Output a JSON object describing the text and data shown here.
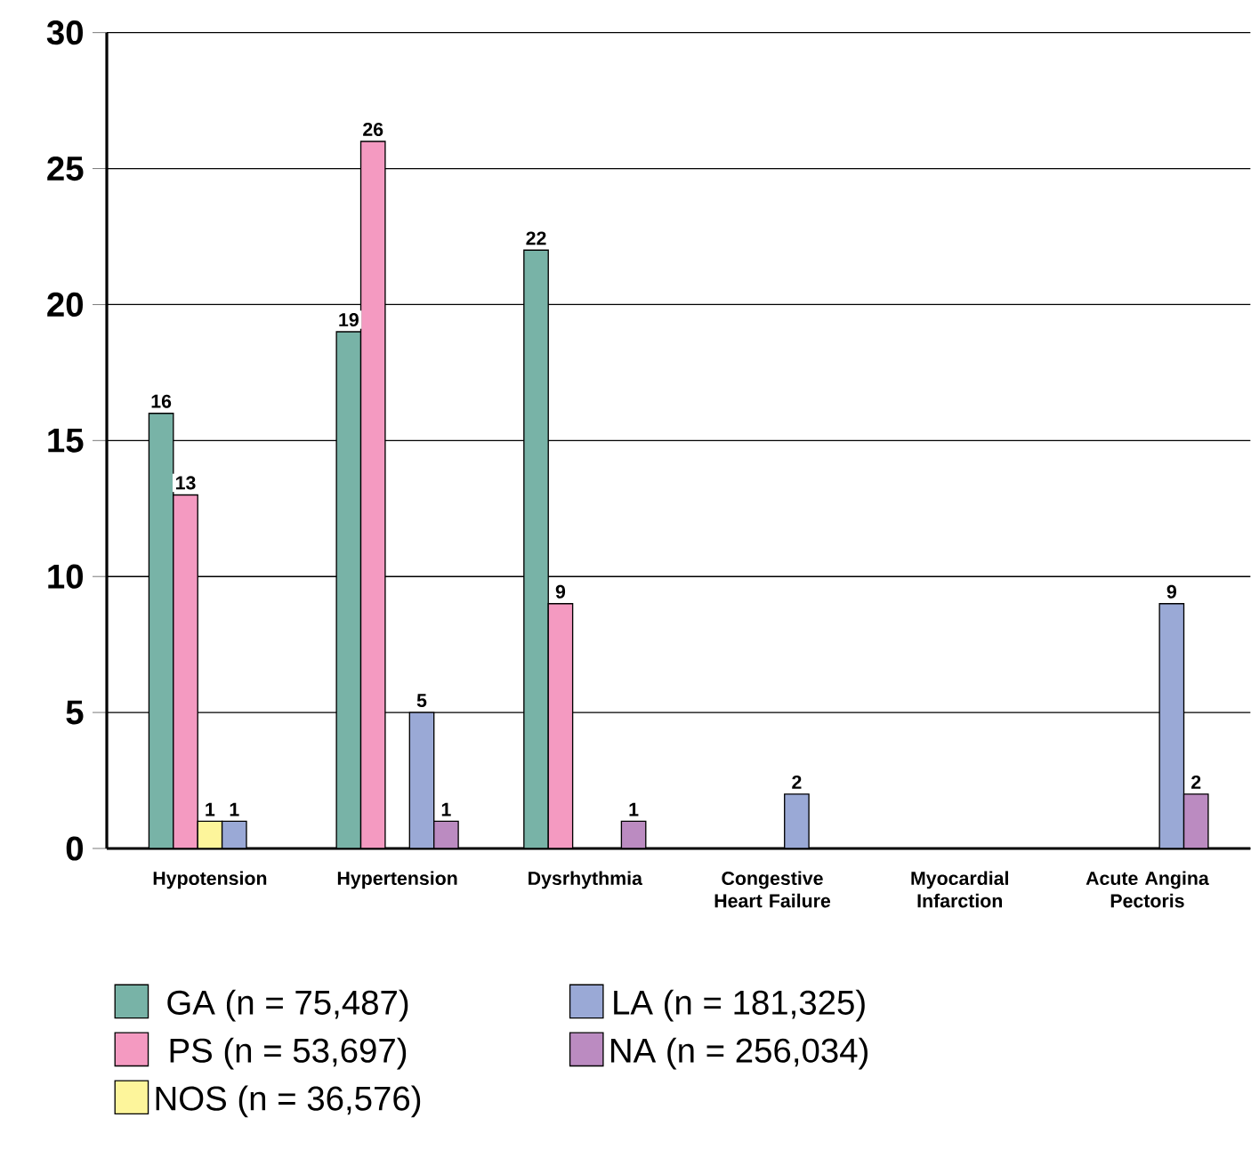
{
  "chart_data": {
    "type": "bar",
    "categories": [
      "Hypotension",
      "Hypertension",
      "Dysrhythmia",
      "Congestive Heart Failure",
      "Myocardial Infarction",
      "Acute Angina Pectoris"
    ],
    "series": [
      {
        "name": "GA (n = 75,487)",
        "color": "#78b3a7",
        "values": [
          16,
          19,
          22,
          null,
          null,
          null
        ]
      },
      {
        "name": "PS (n = 53,697)",
        "color": "#f49ac1",
        "values": [
          13,
          26,
          9,
          null,
          null,
          null
        ]
      },
      {
        "name": "NOS (n = 36,576)",
        "color": "#fdf59b",
        "values": [
          1,
          null,
          null,
          null,
          null,
          null
        ]
      },
      {
        "name": "LA (n = 181,325)",
        "color": "#9aa9d6",
        "values": [
          1,
          5,
          null,
          2,
          null,
          9
        ]
      },
      {
        "name": "NA (n = 256,034)",
        "color": "#bb8bc1",
        "values": [
          null,
          1,
          1,
          null,
          null,
          2
        ]
      }
    ],
    "ylim": [
      0,
      30
    ],
    "yticks": [
      0,
      5,
      10,
      15,
      20,
      25,
      30
    ],
    "grid": "y",
    "legend": "bottom",
    "data_labels": true
  }
}
